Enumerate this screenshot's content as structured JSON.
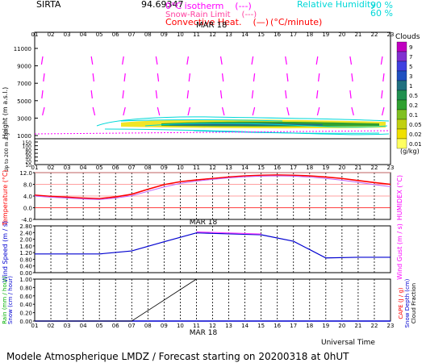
{
  "header": {
    "site": "SIRTA",
    "coords": "94.69347",
    "legend_left": [
      {
        "label": "0°C isotherm",
        "swatch": "(---)",
        "color": "#ff00ff"
      },
      {
        "label": "Snow-Rain Limit",
        "swatch": "(---)",
        "color": "#ff40a0"
      },
      {
        "label": "Convective Heat.",
        "swatch": "(—)",
        "extra": "(°C/minute)",
        "color": "#ff0000"
      }
    ],
    "legend_right": [
      {
        "label": "Relative Humidity",
        "value": "90 %",
        "color": "#00d8d8"
      },
      {
        "value": "60 %",
        "color": "#00d8d8"
      }
    ]
  },
  "hours": [
    "01",
    "02",
    "03",
    "04",
    "05",
    "06",
    "07",
    "08",
    "09",
    "10",
    "11",
    "12",
    "13",
    "14",
    "15",
    "16",
    "17",
    "18",
    "19",
    "20",
    "21",
    "22",
    "23"
  ],
  "date_label": "MAR 18",
  "footer": {
    "universal_time": "Universal Time",
    "title": "Modele Atmospherique LMDZ / Forecast starting on 20200318 at 0hUT"
  },
  "colorbar": {
    "title": "Clouds",
    "unit": "(g/kg)",
    "labels": [
      "9",
      "7",
      "5",
      "3",
      "1",
      "0.5",
      "0.2",
      "0.1",
      "0.05",
      "0.02",
      "0.01"
    ],
    "colors": [
      "#c000c0",
      "#8030d0",
      "#4040e0",
      "#2050c0",
      "#207080",
      "#209050",
      "#30a030",
      "#80c020",
      "#c0d010",
      "#f0e000",
      "#ffff60"
    ]
  },
  "chart_data": [
    {
      "type": "heatmap",
      "panel": "height",
      "ylabel": "Height (m a.s.l.)",
      "ylabel_lower": "Up to 200 m a.g.l.",
      "yticks_upper": [
        "11000",
        "9000",
        "7000",
        "5000",
        "3000",
        "1000"
      ],
      "yticks_lower": [
        "150",
        "100",
        "80",
        "60",
        "40",
        "20",
        "10"
      ],
      "x": [
        "01",
        "02",
        "03",
        "04",
        "05",
        "06",
        "07",
        "08",
        "09",
        "10",
        "11",
        "12",
        "13",
        "14",
        "15",
        "16",
        "17",
        "18",
        "19",
        "20",
        "21",
        "22",
        "23"
      ],
      "low_cloud_layer_height_m": 2000,
      "isotherm_0C_height_m": 1500
    },
    {
      "type": "line",
      "panel": "temperature",
      "ylabel": "Temperature (°C)",
      "ylabel_right": "HUMIDEX (°C)",
      "ylim": [
        -4,
        12
      ],
      "yticks": [
        "12.0",
        "8.0",
        "4.0",
        "0.0",
        "-4.0"
      ],
      "x": [
        "01",
        "02",
        "03",
        "04",
        "05",
        "06",
        "07",
        "08",
        "09",
        "10",
        "11",
        "12",
        "13",
        "14",
        "15",
        "16",
        "17",
        "18",
        "19",
        "20",
        "21",
        "22",
        "23"
      ],
      "series": [
        {
          "values": [
            4.3,
            3.9,
            3.6,
            3.3,
            3.1,
            3.7,
            4.6,
            6.3,
            7.9,
            8.9,
            9.5,
            10.0,
            10.5,
            10.9,
            11.1,
            11.2,
            11.1,
            10.9,
            10.5,
            10.0,
            9.3,
            8.6,
            8.0
          ],
          "color": "#ff0000"
        },
        {
          "values": [
            4.0,
            3.6,
            3.3,
            3.0,
            2.8,
            3.3,
            4.1,
            5.6,
            7.1,
            8.3,
            9.1,
            9.7,
            10.2,
            10.6,
            10.8,
            10.9,
            10.8,
            10.5,
            10.0,
            9.4,
            8.7,
            7.9,
            7.2
          ],
          "color": "#c060ff"
        }
      ]
    },
    {
      "type": "line",
      "panel": "wind",
      "ylabel": "Wind Speed (m / s)",
      "ylabel_right": "Wind Gust (m / s)",
      "ylim": [
        0,
        2.8
      ],
      "yticks": [
        "2.80",
        "2.40",
        "2.00",
        "1.60",
        "1.20",
        "0.80",
        "0.40",
        "0.00"
      ],
      "x": [
        "01",
        "05",
        "07",
        "09",
        "11",
        "15",
        "17",
        "19",
        "21",
        "23"
      ],
      "series": [
        {
          "values": [
            1.12,
            1.12,
            1.3,
            1.85,
            2.38,
            2.27,
            1.88,
            0.88,
            0.92,
            0.92
          ],
          "color": "#0000d0"
        },
        {
          "x": [
            "11",
            "15"
          ],
          "values": [
            2.44,
            2.31
          ],
          "color": "#ff40ff"
        }
      ]
    },
    {
      "type": "line",
      "panel": "precipitation",
      "ylabel": "Rain (mm / hour)",
      "ylabel_2": "Snow (cm / hour)",
      "ylabel_right": "CAPE (J / g)",
      "ylabel_right_2": "Snow Depth (cm)",
      "ylabel_right_3": "Cloud Fraction",
      "ylim": [
        0,
        1
      ],
      "yticks": [
        "1.00",
        "0.80",
        "0.60",
        "0.40",
        "0.20",
        "0.00"
      ],
      "x": [
        "01",
        "07",
        "11"
      ],
      "series": [
        {
          "values": [
            0.0,
            0.0,
            1.0
          ],
          "color": "#000000"
        }
      ]
    }
  ]
}
